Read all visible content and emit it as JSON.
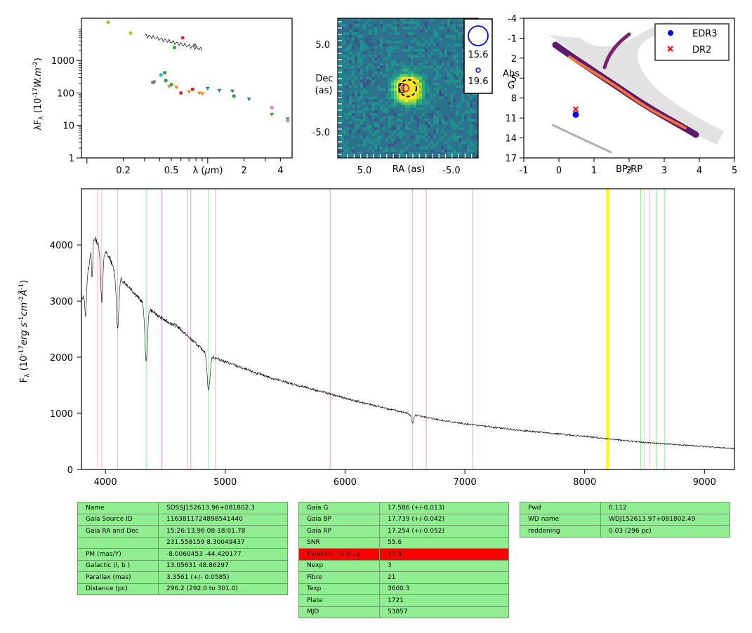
{
  "colors": {
    "edr3": "#0000ff",
    "dr2": "#ff0000",
    "h_line": "#90ee90",
    "ca_line": "#ffb6c1",
    "he_line": "#dda0dd",
    "na_line": "#ffff00",
    "spectrum": "#000000",
    "table_bg": "#90ee90",
    "table_highlight": "#ff0000"
  },
  "sed": {
    "xlabel_html": "λ (μm)",
    "ylabel": "λF_λ (10^-17 W.m^-2)",
    "xticks": [
      "0.2",
      "0.5",
      "2",
      "4"
    ],
    "yticks": [
      "1",
      "10",
      "100",
      "1000"
    ],
    "xlog": true,
    "ylog": true,
    "xlim": [
      0.09,
      5
    ],
    "ylim": [
      1,
      20000
    ]
  },
  "image": {
    "xlabel": "RA (as)",
    "ylabel": "Dec\n(as)",
    "xticks": [
      "5.0",
      "-5.0"
    ],
    "yticks": [
      "5.0",
      "-5.0"
    ],
    "legend": [
      "15.6",
      "19.6"
    ]
  },
  "hrd": {
    "xlabel": "BP-RP",
    "ylabel": "Abs\nG",
    "xticks": [
      "-1",
      "0",
      "1",
      "2",
      "3",
      "4",
      "5"
    ],
    "yticks": [
      "-4",
      "-1",
      "2",
      "5",
      "8",
      "11",
      "14",
      "17"
    ],
    "legend": [
      {
        "label": "EDR3",
        "marker": "circle"
      },
      {
        "label": "DR2",
        "marker": "x"
      }
    ],
    "xlim": [
      -1,
      5
    ],
    "ylim": [
      17,
      -4
    ]
  },
  "spectrum": {
    "ylabel": "F_λ (10^-17 erg s^-1 cm^-2 Å^-1)",
    "xticks": [
      "4000",
      "5000",
      "6000",
      "7000",
      "8000",
      "9000"
    ],
    "yticks": [
      "0",
      "1000",
      "2000",
      "3000",
      "4000"
    ],
    "xlim": [
      3800,
      9250
    ],
    "ylim": [
      0,
      5000
    ]
  },
  "chart_data": [
    {
      "type": "scatter",
      "title": "",
      "xlabel": "λ (μm)",
      "ylabel": "λF_λ (10^-17 W.m^-2)",
      "xlog": true,
      "ylog": true,
      "xlim": [
        0.09,
        5
      ],
      "ylim": [
        1,
        20000
      ],
      "series": [
        {
          "color": "#bcbd22",
          "points": [
            [
              0.15,
              15000
            ],
            [
              0.23,
              7000
            ]
          ]
        },
        {
          "color": "#d62728",
          "points": [
            [
              0.62,
              5000
            ],
            [
              0.75,
              130
            ],
            [
              0.6,
              100
            ]
          ]
        },
        {
          "color": "#7f7f7f",
          "points": [
            [
              0.78,
              3000
            ],
            [
              0.36,
              220
            ],
            [
              0.35,
              210
            ]
          ]
        },
        {
          "color": "#2ca02c",
          "points": [
            [
              0.53,
              2500
            ],
            [
              0.44,
              420
            ],
            [
              0.45,
              240
            ],
            [
              0.5,
              180
            ],
            [
              1.65,
              80
            ],
            [
              3.4,
              22
            ],
            [
              4.6,
              16
            ]
          ]
        },
        {
          "color": "#17becf",
          "points": [
            [
              0.41,
              360
            ]
          ]
        },
        {
          "color": "#ff7f0e",
          "points": [
            [
              0.48,
              160
            ],
            [
              0.55,
              150
            ],
            [
              0.7,
              110
            ],
            [
              0.85,
              100
            ],
            [
              0.9,
              95
            ]
          ]
        },
        {
          "color": "#1f77b4",
          "points": [
            [
              1.0,
              140
            ],
            [
              1.25,
              120
            ],
            [
              1.6,
              115
            ],
            [
              2.2,
              65
            ]
          ]
        },
        {
          "color": "#e377c2",
          "points": [
            [
              3.4,
              35
            ],
            [
              4.6,
              14
            ]
          ]
        }
      ],
      "model_curve": {
        "color": "#000000",
        "x": [
          0.3,
          0.9
        ],
        "y": [
          6000,
          2200
        ]
      }
    },
    {
      "type": "heatmap",
      "title": "",
      "xlabel": "RA (as)",
      "ylabel": "Dec (as)",
      "xlim": [
        8,
        -8
      ],
      "ylim": [
        -8,
        8
      ],
      "source": {
        "x": 0,
        "y": 0,
        "peak": 1.0
      },
      "legend": [
        "15.6",
        "19.6"
      ]
    },
    {
      "type": "scatter",
      "title": "",
      "xlabel": "BP-RP",
      "ylabel": "Abs G",
      "xlim": [
        -1,
        5
      ],
      "ylim": [
        17,
        -4
      ],
      "series": [
        {
          "name": "EDR3",
          "color": "#0000ff",
          "marker": "circle",
          "points": [
            [
              0.48,
              10.5
            ]
          ]
        },
        {
          "name": "DR2",
          "color": "#ff0000",
          "marker": "x",
          "points": [
            [
              0.48,
              10.0
            ]
          ]
        }
      ]
    },
    {
      "type": "line",
      "title": "",
      "xlabel": "",
      "ylabel": "F_λ (10^-17 erg s^-1 cm^-2 Å^-1)",
      "xlim": [
        3800,
        9250
      ],
      "ylim": [
        0,
        5000
      ],
      "continuum": [
        [
          3800,
          3000
        ],
        [
          3830,
          3150
        ],
        [
          3860,
          3600
        ],
        [
          3890,
          4100
        ],
        [
          3920,
          4100
        ],
        [
          3960,
          3900
        ],
        [
          4000,
          3870
        ],
        [
          4040,
          3750
        ],
        [
          4080,
          3500
        ],
        [
          4200,
          3250
        ],
        [
          4300,
          3000
        ],
        [
          4400,
          2800
        ],
        [
          4500,
          2650
        ],
        [
          4600,
          2550
        ],
        [
          4700,
          2350
        ],
        [
          4800,
          2150
        ],
        [
          4900,
          2000
        ],
        [
          5000,
          1920
        ],
        [
          5200,
          1760
        ],
        [
          5400,
          1620
        ],
        [
          5600,
          1500
        ],
        [
          5800,
          1390
        ],
        [
          6000,
          1270
        ],
        [
          6200,
          1160
        ],
        [
          6400,
          1060
        ],
        [
          6600,
          960
        ],
        [
          6800,
          880
        ],
        [
          7000,
          810
        ],
        [
          7500,
          690
        ],
        [
          8000,
          590
        ],
        [
          8500,
          480
        ],
        [
          9000,
          410
        ],
        [
          9250,
          370
        ]
      ],
      "absorption": [
        [
          3835,
          500,
          6
        ],
        [
          3889,
          700,
          5
        ],
        [
          3970,
          900,
          9
        ],
        [
          4102,
          950,
          10
        ],
        [
          4340,
          1000,
          11
        ],
        [
          4861,
          650,
          12
        ],
        [
          6563,
          150,
          10
        ]
      ],
      "lines": [
        {
          "species": "H",
          "color": "#90ee90",
          "x": [
            4102,
            4340,
            4861,
            6563,
            8467,
            8598,
            8665
          ]
        },
        {
          "species": "Ca",
          "color": "#ffb6c1",
          "x": [
            3934,
            3969,
            8498,
            8542
          ]
        },
        {
          "species": "He",
          "color": "#dda0dd",
          "x": [
            4471,
            4686,
            4713,
            4921,
            5876,
            6678,
            7065
          ]
        },
        {
          "species": "Na",
          "color": "#ffff00",
          "x": [
            8183,
            8195
          ]
        }
      ]
    }
  ],
  "tables": {
    "t1": [
      [
        "Name",
        "SDSSJ152613.96+081802.3"
      ],
      [
        "Gaia Source ID",
        "1163811724898541440"
      ],
      [
        "Gaia RA and Dec",
        "15:26:13.96    08:18:01.78"
      ],
      [
        "",
        "231.558159    8.30049437"
      ],
      [
        "PM (mas/Y)",
        "-8.0060453    -44.420177"
      ],
      [
        "Galactic (l, b )",
        "13.05631    48.86297"
      ],
      [
        "Parallax (mas)",
        "3.3561 (+/- 0.0585)"
      ],
      [
        "Distance (pc)",
        "296.2 (292.0 to 301.0)"
      ]
    ],
    "t2": [
      [
        "Gaia G",
        "17.586 (+/-0.013)"
      ],
      [
        "Gaia BP",
        "17.739 (+/-0.042)"
      ],
      [
        "Gaia RP",
        "17.254 (+/-0.052)"
      ],
      [
        "SNR",
        "55.6"
      ],
      [
        "Synthetic G mag",
        "13.5"
      ],
      [
        "Nexp",
        "3"
      ],
      [
        "Fibre",
        "21"
      ],
      [
        "Texp",
        "3600.3"
      ],
      [
        "Plate",
        "1721"
      ],
      [
        "MJD",
        "53857"
      ]
    ],
    "t2_highlight_row": 4,
    "t3": [
      [
        "Pwd",
        "0.112"
      ],
      [
        "WD name",
        "WDJ152613.97+081802.49"
      ],
      [
        "reddening",
        "0.03 (296 pc)"
      ]
    ]
  }
}
